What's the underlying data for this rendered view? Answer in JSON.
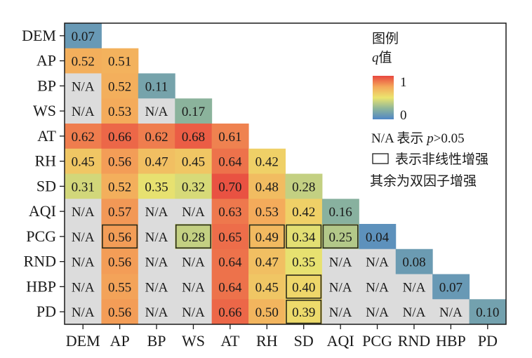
{
  "chart_data": {
    "type": "heatmap",
    "title": "",
    "xlabel": "",
    "ylabel": "",
    "variables": [
      "DEM",
      "AP",
      "BP",
      "WS",
      "AT",
      "RH",
      "SD",
      "AQI",
      "PCG",
      "RND",
      "HBP",
      "PD"
    ],
    "x_tick_labels": [
      "DEM",
      "AP",
      "BP",
      "WS",
      "AT",
      "RH",
      "SD",
      "AQI",
      "PCG",
      "RND",
      "HBP",
      "PD"
    ],
    "y_tick_labels": [
      "DEM",
      "AP",
      "BP",
      "WS",
      "AT",
      "RH",
      "SD",
      "AQI",
      "PCG",
      "RND",
      "HBP",
      "PD"
    ],
    "matrix": [
      [
        0.07
      ],
      [
        0.52,
        0.51
      ],
      [
        null,
        0.52,
        0.11
      ],
      [
        null,
        0.53,
        null,
        0.17
      ],
      [
        0.62,
        0.66,
        0.62,
        0.68,
        0.61
      ],
      [
        0.45,
        0.56,
        0.47,
        0.45,
        0.64,
        0.42
      ],
      [
        0.31,
        0.52,
        0.35,
        0.32,
        0.7,
        0.48,
        0.28
      ],
      [
        null,
        0.57,
        null,
        null,
        0.63,
        0.53,
        0.42,
        0.16
      ],
      [
        null,
        0.56,
        null,
        0.28,
        0.65,
        0.49,
        0.34,
        0.25,
        0.04
      ],
      [
        null,
        0.56,
        null,
        null,
        0.64,
        0.47,
        0.35,
        null,
        null,
        0.08
      ],
      [
        null,
        0.55,
        null,
        null,
        0.64,
        0.45,
        0.4,
        null,
        null,
        null,
        0.07
      ],
      [
        null,
        0.56,
        null,
        null,
        0.66,
        0.5,
        0.39,
        null,
        null,
        null,
        null,
        0.1
      ]
    ],
    "na_label": "N/A",
    "nonlinear_enhanced_cells": [
      {
        "row": "PCG",
        "col": "AP"
      },
      {
        "row": "PCG",
        "col": "WS"
      },
      {
        "row": "PCG",
        "col": "RH"
      },
      {
        "row": "PCG",
        "col": "SD"
      },
      {
        "row": "PCG",
        "col": "AQI"
      },
      {
        "row": "HBP",
        "col": "SD"
      },
      {
        "row": "PD",
        "col": "SD"
      }
    ],
    "color_scale": {
      "min": 0,
      "max": 1,
      "colors": [
        "#4f86c6",
        "#8fb69a",
        "#ece46e",
        "#f4a85a",
        "#e8473f"
      ],
      "na_color": "#dcdcdc"
    },
    "legend": {
      "position": "top-right",
      "title": "图例",
      "scale_label_q": "q",
      "scale_label_suffix": "值",
      "scale_max_label": "1",
      "scale_min_label": "0",
      "na_note_prefix": "N/A 表示 ",
      "na_note_p": "p",
      "na_note_suffix": ">0.05",
      "box_note": "表示非线性增强",
      "other_note": "其余为双因子增强"
    }
  }
}
